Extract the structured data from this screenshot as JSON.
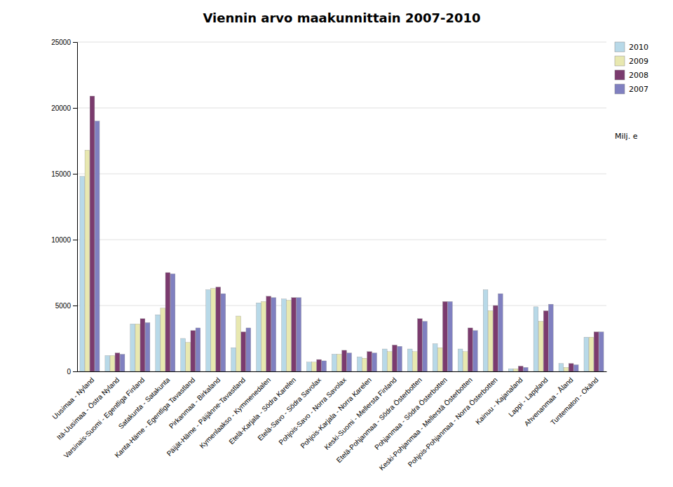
{
  "chart_data": {
    "type": "bar",
    "title": "Viennin arvo maakunnittain 2007-2010",
    "ylabel": "Milj. e",
    "categories": [
      "Uusimaa - Nyland",
      "Itä-Uusimaa - Östra Nyland",
      "Varsinais-Suomi - Egentliga Finland",
      "Satakunta - Satakunta",
      "Kanta-Häme - Egentliga Tavastland",
      "Pirkanmaa - Birkaland",
      "Päijät-Häme - Päijänne-Tavastland",
      "Kymenlaakso - Kymmenedalen",
      "Etelä-Karjala - Södra Karelen",
      "Etelä-Savo - Södra Savolax",
      "Pohjois-Savo - Norra Savolax",
      "Pohjois-Karjala - Norra Karelen",
      "Keski-Suomi - Mellersta Finland",
      "Etelä-Pohjanmaa - Södra Österbotten",
      "Pohjanmaa - Södra Österbotten",
      "Keski-Pohjanmaa - Mellerstä Österbotten",
      "Pohjois-Pohjanmaa - Norra Österbotten",
      "Kainuu - Kajanaland",
      "Lappi - Lappland",
      "Ahvenanmaa - Åland",
      "Tuntematon - Okänd"
    ],
    "series": [
      {
        "name": "2010",
        "color": "#b8d9e8",
        "values": [
          14800,
          1200,
          3600,
          4300,
          2500,
          6200,
          1800,
          5200,
          5500,
          700,
          1300,
          1100,
          1700,
          1700,
          2100,
          1700,
          6200,
          200,
          4900,
          600,
          2600
        ]
      },
      {
        "name": "2009",
        "color": "#e8e8b0",
        "values": [
          16800,
          1200,
          3600,
          4800,
          2200,
          6300,
          4200,
          5300,
          5400,
          700,
          1300,
          1000,
          1500,
          1500,
          1800,
          1500,
          4600,
          200,
          3800,
          300,
          2600
        ]
      },
      {
        "name": "2008",
        "color": "#7b3b6e",
        "values": [
          20900,
          1400,
          4000,
          7500,
          3100,
          6400,
          3000,
          5700,
          5600,
          900,
          1600,
          1500,
          2000,
          4000,
          5300,
          3300,
          5000,
          400,
          4600,
          600,
          3000
        ]
      },
      {
        "name": "2007",
        "color": "#8080c0",
        "values": [
          19000,
          1300,
          3700,
          7400,
          3300,
          5900,
          3300,
          5600,
          5600,
          800,
          1400,
          1400,
          1900,
          3800,
          5300,
          3100,
          5900,
          300,
          5100,
          500,
          3000
        ]
      }
    ],
    "ylim": [
      0,
      25000
    ],
    "yticks": [
      0,
      5000,
      10000,
      15000,
      20000,
      25000
    ],
    "grid": true,
    "legend": "upper right"
  }
}
